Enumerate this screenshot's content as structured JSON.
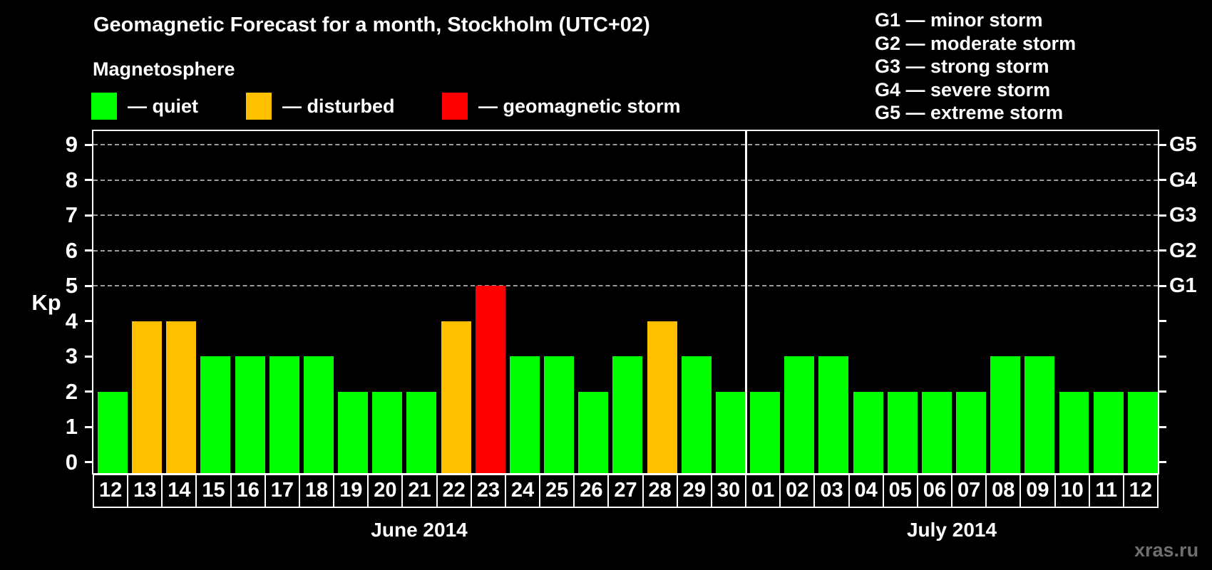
{
  "header": {
    "title": "Geomagnetic Forecast for a month, Stockholm (UTC+02)"
  },
  "magnetosphere_legend": {
    "title": "Magnetosphere",
    "items": [
      {
        "label": "— quiet",
        "status": "quiet",
        "color": "#00ff00"
      },
      {
        "label": "— disturbed",
        "status": "disturbed",
        "color": "#ffc000"
      },
      {
        "label": "— geomagnetic storm",
        "status": "storm",
        "color": "#ff0000"
      }
    ]
  },
  "g_scale_legend": {
    "items": [
      "G1 — minor storm",
      "G2 — moderate storm",
      "G3 — strong storm",
      "G4 — severe storm",
      "G5 — extreme storm"
    ]
  },
  "watermark": "xras.ru",
  "chart_data": {
    "type": "bar",
    "title": "Geomagnetic Forecast for a month, Stockholm (UTC+02)",
    "ylabel": "Kp",
    "ylim": [
      0,
      9
    ],
    "y_ticks": [
      0,
      1,
      2,
      3,
      4,
      5,
      6,
      7,
      8,
      9
    ],
    "grid_levels": [
      5,
      6,
      7,
      8,
      9
    ],
    "grid": "dashed gray horizontal lines at Kp 5–9 only",
    "right_axis_labels": [
      {
        "kp": 5,
        "label": "G1"
      },
      {
        "kp": 6,
        "label": "G2"
      },
      {
        "kp": 7,
        "label": "G3"
      },
      {
        "kp": 8,
        "label": "G4"
      },
      {
        "kp": 9,
        "label": "G5"
      }
    ],
    "colors": {
      "quiet": "#00ff00",
      "disturbed": "#ffc000",
      "storm": "#ff0000"
    },
    "months": [
      {
        "label": "June 2014",
        "days": [
          {
            "day": "12",
            "kp": 2,
            "status": "quiet"
          },
          {
            "day": "13",
            "kp": 4,
            "status": "disturbed"
          },
          {
            "day": "14",
            "kp": 4,
            "status": "disturbed"
          },
          {
            "day": "15",
            "kp": 3,
            "status": "quiet"
          },
          {
            "day": "16",
            "kp": 3,
            "status": "quiet"
          },
          {
            "day": "17",
            "kp": 3,
            "status": "quiet"
          },
          {
            "day": "18",
            "kp": 3,
            "status": "quiet"
          },
          {
            "day": "19",
            "kp": 2,
            "status": "quiet"
          },
          {
            "day": "20",
            "kp": 2,
            "status": "quiet"
          },
          {
            "day": "21",
            "kp": 2,
            "status": "quiet"
          },
          {
            "day": "22",
            "kp": 4,
            "status": "disturbed"
          },
          {
            "day": "23",
            "kp": 5,
            "status": "storm"
          },
          {
            "day": "24",
            "kp": 3,
            "status": "quiet"
          },
          {
            "day": "25",
            "kp": 3,
            "status": "quiet"
          },
          {
            "day": "26",
            "kp": 2,
            "status": "quiet"
          },
          {
            "day": "27",
            "kp": 3,
            "status": "quiet"
          },
          {
            "day": "28",
            "kp": 4,
            "status": "disturbed"
          },
          {
            "day": "29",
            "kp": 3,
            "status": "quiet"
          },
          {
            "day": "30",
            "kp": 2,
            "status": "quiet"
          }
        ]
      },
      {
        "label": "July 2014",
        "days": [
          {
            "day": "01",
            "kp": 2,
            "status": "quiet"
          },
          {
            "day": "02",
            "kp": 3,
            "status": "quiet"
          },
          {
            "day": "03",
            "kp": 3,
            "status": "quiet"
          },
          {
            "day": "04",
            "kp": 2,
            "status": "quiet"
          },
          {
            "day": "05",
            "kp": 2,
            "status": "quiet"
          },
          {
            "day": "06",
            "kp": 2,
            "status": "quiet"
          },
          {
            "day": "07",
            "kp": 2,
            "status": "quiet"
          },
          {
            "day": "08",
            "kp": 3,
            "status": "quiet"
          },
          {
            "day": "09",
            "kp": 3,
            "status": "quiet"
          },
          {
            "day": "10",
            "kp": 2,
            "status": "quiet"
          },
          {
            "day": "11",
            "kp": 2,
            "status": "quiet"
          },
          {
            "day": "12",
            "kp": 2,
            "status": "quiet"
          }
        ]
      }
    ]
  }
}
